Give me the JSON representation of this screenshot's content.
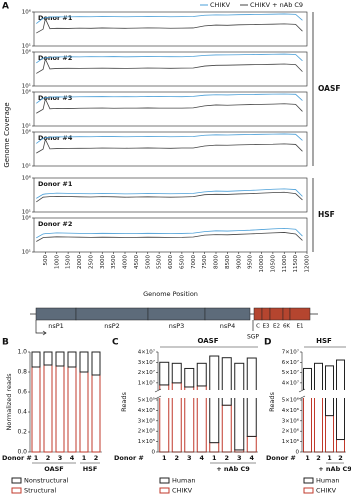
{
  "chart_data": [
    {
      "type": "coverage",
      "panel_label": "A",
      "ylabel": "Genome Coverage",
      "xlabel": "Genome Position",
      "legend": [
        {
          "name": "CHIKV",
          "color": "#4a9fd8"
        },
        {
          "name": "CHIKV + nAb C9",
          "color": "#444444"
        }
      ],
      "log_y": true,
      "x": [
        100,
        400,
        500,
        700,
        1000,
        1500,
        2000,
        2500,
        3000,
        3500,
        4000,
        4500,
        5000,
        5500,
        6000,
        6500,
        7000,
        7500,
        8000,
        8500,
        9000,
        9500,
        10000,
        10500,
        11000,
        11500,
        11800
      ],
      "xlim": [
        0,
        12000
      ],
      "xticks": [
        500,
        1000,
        1500,
        2000,
        2500,
        3000,
        3500,
        4000,
        4500,
        5000,
        5500,
        6000,
        6500,
        7000,
        7500,
        8000,
        8500,
        9000,
        9500,
        10000,
        10500,
        11000,
        11500,
        12000
      ],
      "ylim": [
        10,
        1000000
      ],
      "yticks": [
        {
          "value": 1000000,
          "label": "10⁶"
        },
        {
          "value": 10,
          "label": "10¹"
        }
      ],
      "group_labels": [
        "OASF",
        "HSF"
      ],
      "panels": [
        {
          "title": "Donor #1",
          "series": [
            {
              "values": [
                20000,
                120000,
                150000,
                180000,
                200000,
                190000,
                210000,
                200000,
                220000,
                210000,
                200000,
                210000,
                230000,
                220000,
                200000,
                210000,
                220000,
                330000,
                380000,
                360000,
                400000,
                420000,
                450000,
                480000,
                520000,
                450000,
                60000
              ]
            },
            {
              "values": [
                800,
                3000,
                100000,
                3500,
                4000,
                3800,
                4200,
                4000,
                4500,
                4200,
                4000,
                4300,
                4600,
                4400,
                4100,
                4300,
                4500,
                9000,
                12000,
                11000,
                13000,
                14000,
                15000,
                16000,
                18000,
                15000,
                1500
              ]
            }
          ]
        },
        {
          "title": "Donor #2",
          "series": [
            {
              "values": [
                25000,
                130000,
                140000,
                170000,
                190000,
                200000,
                190000,
                210000,
                200000,
                215000,
                195000,
                205000,
                220000,
                210000,
                205000,
                200000,
                230000,
                320000,
                370000,
                380000,
                390000,
                430000,
                440000,
                470000,
                500000,
                430000,
                50000
              ]
            },
            {
              "values": [
                700,
                2800,
                90000,
                3200,
                3800,
                4000,
                3900,
                4100,
                4300,
                4000,
                3900,
                4100,
                4400,
                4200,
                4000,
                4200,
                4400,
                8500,
                11000,
                11500,
                12500,
                13500,
                14500,
                15500,
                17000,
                14000,
                1300
              ]
            }
          ]
        },
        {
          "title": "Donor #3",
          "series": [
            {
              "values": [
                22000,
                125000,
                145000,
                175000,
                195000,
                185000,
                200000,
                205000,
                215000,
                200000,
                205000,
                200000,
                225000,
                215000,
                210000,
                205000,
                225000,
                340000,
                390000,
                370000,
                410000,
                430000,
                460000,
                490000,
                510000,
                460000,
                55000
              ]
            },
            {
              "values": [
                750,
                2900,
                95000,
                3400,
                3900,
                3700,
                4100,
                4200,
                4400,
                4100,
                4200,
                4200,
                4500,
                4300,
                4200,
                4200,
                4600,
                9200,
                12500,
                11200,
                12800,
                14200,
                15200,
                16500,
                18500,
                15200,
                1400
              ]
            }
          ]
        },
        {
          "title": "Donor #4",
          "series": [
            {
              "values": [
                21000,
                118000,
                148000,
                172000,
                198000,
                192000,
                205000,
                198000,
                218000,
                212000,
                198000,
                208000,
                228000,
                218000,
                202000,
                208000,
                218000,
                335000,
                385000,
                365000,
                405000,
                425000,
                455000,
                485000,
                515000,
                455000,
                58000
              ]
            },
            {
              "values": [
                780,
                3100,
                80000,
                3300,
                3700,
                3900,
                4000,
                4100,
                4400,
                4300,
                4100,
                4200,
                4500,
                4300,
                4000,
                4400,
                4400,
                8800,
                11800,
                11300,
                12700,
                13800,
                15300,
                15800,
                17800,
                14800,
                1450
              ]
            }
          ]
        },
        {
          "title": "Donor #1",
          "series": [
            {
              "values": [
                1000,
                4000,
                4500,
                5000,
                6000,
                5500,
                5000,
                4800,
                5200,
                5000,
                4600,
                4800,
                5200,
                5000,
                4800,
                5000,
                5500,
                9000,
                12000,
                11000,
                13000,
                15000,
                18000,
                22000,
                25000,
                20000,
                2000
              ]
            },
            {
              "values": [
                300,
                1500,
                1600,
                1800,
                2000,
                1900,
                1700,
                1600,
                1800,
                1700,
                1500,
                1600,
                1700,
                1600,
                1500,
                1600,
                1800,
                3500,
                4000,
                3800,
                4500,
                5000,
                6000,
                7000,
                8000,
                5000,
                600
              ]
            }
          ]
        },
        {
          "title": "Donor #2",
          "series": [
            {
              "values": [
                1200,
                4500,
                5000,
                5500,
                6500,
                6000,
                5500,
                5200,
                5600,
                5400,
                5000,
                5200,
                5600,
                5400,
                5200,
                5400,
                6000,
                10000,
                13000,
                12000,
                14000,
                16000,
                20000,
                25000,
                30000,
                22000,
                2200
              ]
            },
            {
              "values": [
                350,
                1300,
                1400,
                1500,
                1700,
                1600,
                1500,
                1400,
                1500,
                1450,
                1350,
                1400,
                1500,
                1450,
                1350,
                1400,
                1600,
                3000,
                3600,
                3400,
                4000,
                4600,
                5500,
                6500,
                7500,
                4500,
                500
              ]
            }
          ]
        }
      ]
    },
    {
      "type": "stacked_bar",
      "panel_label": "B",
      "ylabel": "Normalized reads",
      "xlabel": "Donor #",
      "categories": [
        "1",
        "2",
        "3",
        "4",
        "1",
        "2"
      ],
      "group_labels": [
        "OASF",
        "HSF"
      ],
      "series": [
        {
          "name": "Nonstructural",
          "color": "#222222",
          "values": [
            0.15,
            0.13,
            0.14,
            0.15,
            0.2,
            0.23
          ]
        },
        {
          "name": "Structural",
          "color": "#c0392b",
          "values": [
            0.85,
            0.87,
            0.86,
            0.85,
            0.8,
            0.77
          ]
        }
      ],
      "ylim": [
        0,
        1
      ],
      "yticks": [
        {
          "value": 0,
          "label": "0.0"
        },
        {
          "value": 0.2,
          "label": "0.2"
        },
        {
          "value": 0.4,
          "label": "0.4"
        },
        {
          "value": 0.6,
          "label": "0.6"
        },
        {
          "value": 0.8,
          "label": "0.8"
        },
        {
          "value": 1,
          "label": "1.0"
        }
      ]
    },
    {
      "type": "broken_bar",
      "panel_label": "C",
      "ylabel": "Reads",
      "xlabel": "Donor #",
      "categories": [
        "1",
        "2",
        "3",
        "4",
        "1",
        "2",
        "3",
        "4"
      ],
      "top_label": "OASF",
      "group_label": "+ nAb C9",
      "series": [
        {
          "name": "Human",
          "color": "#222222",
          "values": [
            22000000,
            19000000,
            18000000,
            22000000,
            36000000,
            34000000,
            29000000,
            34000000
          ]
        },
        {
          "name": "CHIKV",
          "color": "#c0392b",
          "values": [
            8000000,
            10000000,
            6000000,
            7000000,
            90000,
            450000,
            20000,
            150000
          ]
        }
      ],
      "ylim_upper": [
        5000000,
        40000000
      ],
      "yticks_upper": [
        {
          "value": 40000000,
          "label": "4×10⁷"
        },
        {
          "value": 30000000,
          "label": "3×10⁷"
        },
        {
          "value": 20000000,
          "label": "2×10⁷"
        },
        {
          "value": 10000000,
          "label": "1×10⁷"
        }
      ],
      "ylim_lower": [
        0,
        500000
      ],
      "yticks_lower": [
        {
          "value": 500000,
          "label": "5×10⁵"
        },
        {
          "value": 400000,
          "label": "4×10⁵"
        },
        {
          "value": 300000,
          "label": "3×10⁵"
        },
        {
          "value": 200000,
          "label": "2×10⁵"
        },
        {
          "value": 100000,
          "label": "1×10⁵"
        },
        0
      ]
    },
    {
      "type": "broken_bar",
      "panel_label": "D",
      "ylabel": "Reads",
      "xlabel": "Donor #",
      "categories": [
        "1",
        "2",
        "1",
        "2"
      ],
      "top_label": "HSF",
      "group_label": "+ nAb C9",
      "series": [
        {
          "name": "Human",
          "color": "#222222",
          "values": [
            45000000,
            51000000,
            53000000,
            61000000
          ]
        },
        {
          "name": "CHIKV",
          "color": "#c0392b",
          "values": [
            9000000,
            8000000,
            3500000,
            1200000
          ]
        }
      ],
      "ylim_upper": [
        35000000,
        70000000
      ],
      "yticks_upper": [
        {
          "value": 70000000,
          "label": "7×10⁷"
        },
        {
          "value": 60000000,
          "label": "6×10⁷"
        },
        {
          "value": 50000000,
          "label": "5×10⁷"
        },
        {
          "value": 40000000,
          "label": "4×10⁷"
        }
      ],
      "ylim_lower": [
        0,
        5000000
      ],
      "yticks_lower": [
        {
          "value": 5000000,
          "label": "5×10⁶"
        },
        {
          "value": 4000000,
          "label": "4×10⁶"
        },
        {
          "value": 3000000,
          "label": "3×10⁶"
        },
        {
          "value": 2000000,
          "label": "2×10⁶"
        },
        {
          "value": 1000000,
          "label": "1×10⁶"
        },
        0
      ]
    }
  ],
  "genome_map": {
    "genes": [
      "nsP1",
      "nsP2",
      "nsP3",
      "nsP4",
      "C",
      "E3",
      "E2",
      "6K",
      "E1"
    ],
    "promoter": "SGP"
  }
}
